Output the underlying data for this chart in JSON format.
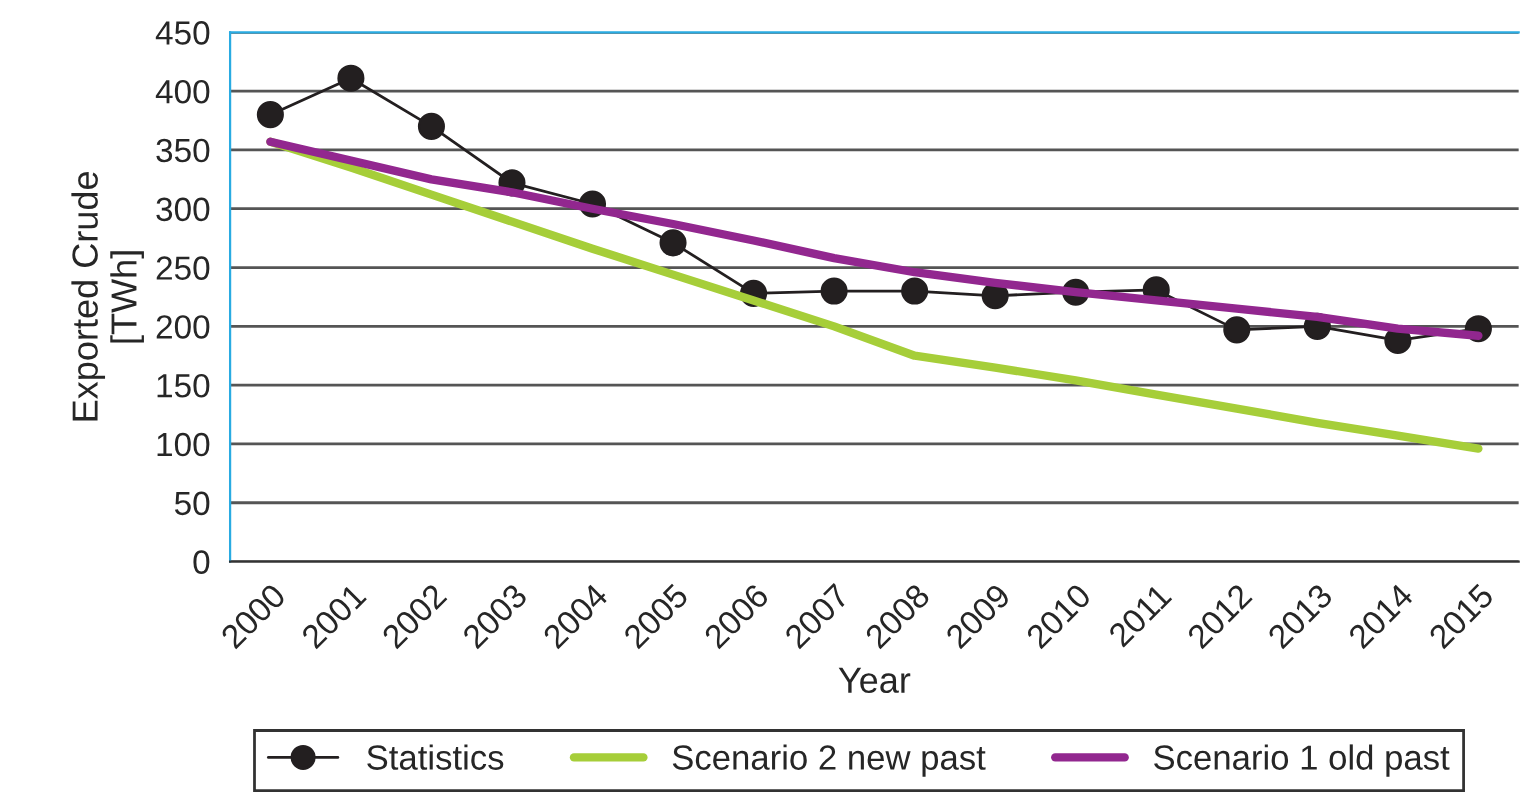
{
  "chart_data": {
    "type": "line",
    "xlabel": "Year",
    "ylabel": "Exported Crude\n[TWh]",
    "categories": [
      "2000",
      "2001",
      "2002",
      "2003",
      "2004",
      "2005",
      "2006",
      "2007",
      "2008",
      "2009",
      "2010",
      "2011",
      "2012",
      "2013",
      "2014",
      "2015"
    ],
    "series": [
      {
        "name": "Statistics",
        "color": "#231f20",
        "marker": "circle",
        "values": [
          380,
          411,
          370,
          322,
          304,
          271,
          228,
          230,
          230,
          226,
          229,
          231,
          197,
          200,
          188,
          198
        ]
      },
      {
        "name": "Scenario 2 new past",
        "color": "#a6ce39",
        "marker": "none",
        "values": [
          357,
          335,
          312,
          289,
          266,
          244,
          222,
          200,
          175,
          165,
          154,
          142,
          130,
          118,
          107,
          96
        ]
      },
      {
        "name": "Scenario 1 old past",
        "color": "#92278f",
        "marker": "none",
        "values": [
          357,
          341,
          325,
          314,
          300,
          287,
          273,
          258,
          246,
          237,
          229,
          222,
          215,
          208,
          198,
          192
        ]
      }
    ],
    "ylim": [
      0,
      450
    ],
    "yticks": [
      0,
      50,
      100,
      150,
      200,
      250,
      300,
      350,
      400,
      450
    ],
    "grid": "y",
    "legend": "bottom"
  }
}
